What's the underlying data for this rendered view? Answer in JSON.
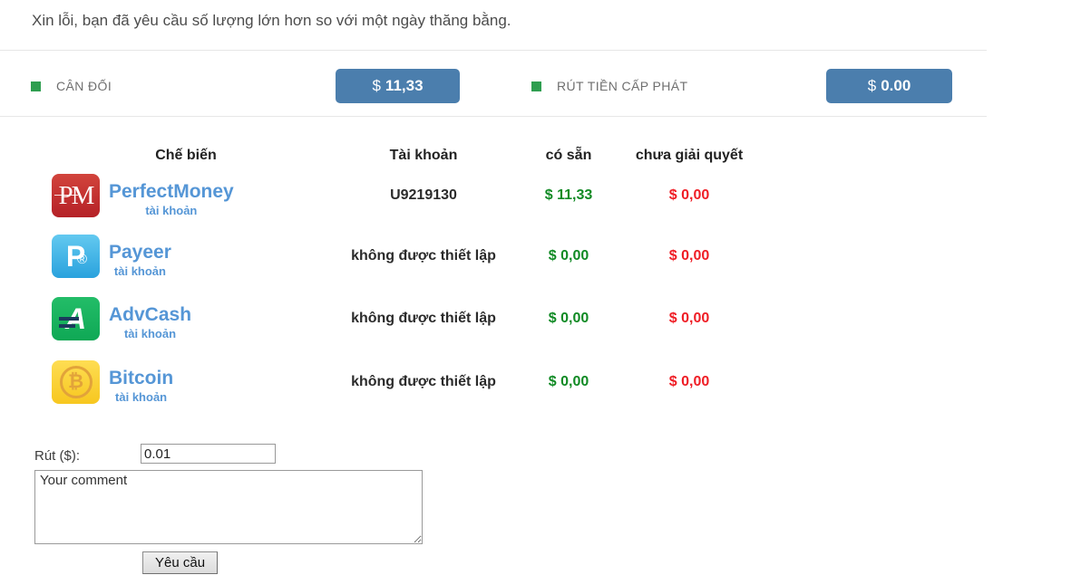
{
  "alert": {
    "message": "Xin lỗi, bạn đã yêu cầu số lượng lớn hơn so với một ngày thăng bằng."
  },
  "balance_bar": {
    "items": [
      {
        "label": "CÂN ĐỐI",
        "currency": "$",
        "value": "11,33"
      },
      {
        "label": "RÚT TIỀN CẤP PHÁT",
        "currency": "$",
        "value": "0.00"
      }
    ]
  },
  "accounts_table": {
    "headers": {
      "processing": "Chế biến",
      "account": "Tài khoản",
      "available": "có sẵn",
      "pending": "chưa giải quyết"
    },
    "rows": [
      {
        "provider": "PerfectMoney",
        "sublabel": "tài khoản",
        "icon_glyph": "PM",
        "account": "U9219130",
        "available": "$ 11,33",
        "pending": "$ 0,00"
      },
      {
        "provider": "Payeer",
        "sublabel": "tài khoản",
        "icon_glyph": "P",
        "icon_glyph_secondary": "®",
        "account": "không được thiết lập",
        "available": "$ 0,00",
        "pending": "$ 0,00"
      },
      {
        "provider": "AdvCash",
        "sublabel": "tài khoản",
        "icon_glyph": "A",
        "account": "không được thiết lập",
        "available": "$ 0,00",
        "pending": "$ 0,00"
      },
      {
        "provider": "Bitcoin",
        "sublabel": "tài khoản",
        "icon_glyph": "₿",
        "account": "không được thiết lập",
        "available": "$ 0,00",
        "pending": "$ 0,00"
      }
    ]
  },
  "withdraw_form": {
    "amount_label": "Rút ($):",
    "amount_value": "0.01",
    "comment_value": "Your comment",
    "submit_label": "Yêu cầu"
  },
  "colors": {
    "accent_blue": "#4b7ead",
    "status_green_square": "#2f9e50",
    "money_green": "#108a24",
    "money_red": "#ef1d25",
    "provider_blue": "#5596d6"
  }
}
